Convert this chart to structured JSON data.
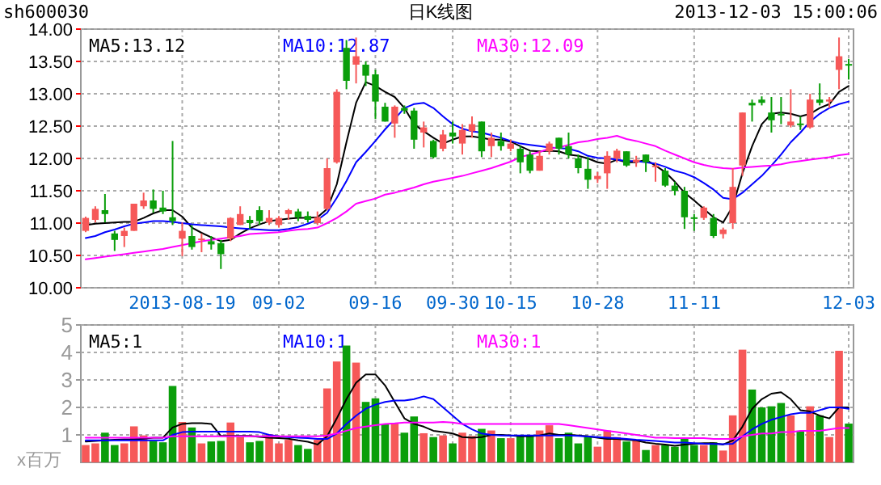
{
  "chart_data": [
    {
      "type": "candlestick",
      "title": "日K线图",
      "subtitle": "sh600030",
      "annotations": [
        "2013-12-03 15:00:06"
      ],
      "categories": [
        null,
        null,
        null,
        null,
        null,
        null,
        null,
        null,
        null,
        null,
        "2013-08-19",
        null,
        null,
        null,
        null,
        null,
        null,
        null,
        null,
        null,
        "09-02",
        null,
        null,
        null,
        null,
        null,
        null,
        null,
        null,
        null,
        "09-16",
        null,
        null,
        null,
        null,
        null,
        null,
        null,
        "09-30",
        null,
        null,
        null,
        null,
        null,
        "10-15",
        null,
        null,
        null,
        null,
        null,
        null,
        null,
        null,
        "10-28",
        null,
        null,
        null,
        null,
        null,
        null,
        null,
        null,
        null,
        "11-11",
        null,
        null,
        null,
        null,
        null,
        null,
        null,
        null,
        null,
        null,
        null,
        null,
        null,
        null,
        null,
        "12-03"
      ],
      "ylim": [
        10,
        14
      ],
      "yticks": [
        {
          "value": 10,
          "label": "10.00"
        },
        {
          "value": 10.5,
          "label": "10.50"
        },
        {
          "value": 11,
          "label": "11.00"
        },
        {
          "value": 11.5,
          "label": "11.50"
        },
        {
          "value": 12,
          "label": "12.00"
        },
        {
          "value": 12.5,
          "label": "12.50"
        },
        {
          "value": 13,
          "label": "13.00"
        },
        {
          "value": 13.5,
          "label": "13.50"
        },
        {
          "value": 14,
          "label": "14.00"
        }
      ],
      "grid": true,
      "legend": "top",
      "series": [
        {
          "ohlc": [
            [
              10.88,
              11.1,
              10.86,
              11.08
            ],
            [
              11.05,
              11.26,
              11.01,
              11.22
            ],
            [
              11.2,
              11.45,
              11.01,
              11.14
            ],
            [
              10.84,
              10.88,
              10.57,
              10.74
            ],
            [
              10.8,
              10.93,
              10.63,
              10.88
            ],
            [
              10.88,
              11.3,
              10.88,
              11.3
            ],
            [
              11.26,
              11.47,
              11.22,
              11.35
            ],
            [
              11.35,
              11.52,
              11.16,
              11.22
            ],
            [
              11.24,
              11.5,
              11.14,
              11.18
            ],
            [
              11.09,
              12.27,
              10.97,
              11.03
            ],
            [
              10.76,
              11.01,
              10.49,
              10.88
            ],
            [
              10.8,
              10.97,
              10.59,
              10.63
            ],
            [
              10.74,
              10.84,
              10.55,
              10.76
            ],
            [
              10.72,
              10.8,
              10.59,
              10.67
            ],
            [
              10.69,
              10.74,
              10.29,
              10.52
            ],
            [
              10.76,
              11.09,
              10.72,
              11.08
            ],
            [
              10.97,
              11.26,
              10.97,
              11.14
            ],
            [
              11.05,
              11.11,
              10.91,
              11.0
            ],
            [
              11.2,
              11.26,
              10.97,
              11.03
            ],
            [
              11.01,
              11.2,
              10.97,
              11.08
            ],
            [
              10.97,
              11.11,
              10.93,
              11.08
            ],
            [
              11.14,
              11.22,
              11.05,
              11.2
            ],
            [
              11.18,
              11.22,
              11.03,
              11.09
            ],
            [
              11.11,
              11.18,
              11.01,
              11.05
            ],
            [
              11.0,
              11.18,
              10.97,
              11.09
            ],
            [
              11.22,
              12.0,
              11.2,
              11.85
            ],
            [
              11.94,
              13.07,
              11.92,
              13.03
            ],
            [
              13.71,
              13.83,
              13.07,
              13.2
            ],
            [
              13.45,
              13.87,
              13.16,
              13.58
            ],
            [
              13.45,
              13.5,
              13.12,
              13.28
            ],
            [
              13.3,
              13.37,
              12.61,
              12.88
            ],
            [
              12.8,
              12.86,
              12.57,
              12.57
            ],
            [
              12.54,
              12.82,
              12.32,
              12.8
            ],
            [
              12.78,
              12.82,
              12.69,
              12.74
            ],
            [
              12.74,
              12.78,
              12.15,
              12.29
            ],
            [
              12.4,
              12.57,
              12.17,
              12.48
            ],
            [
              12.27,
              12.29,
              12.0,
              12.02
            ],
            [
              12.15,
              12.44,
              12.11,
              12.37
            ],
            [
              12.4,
              12.57,
              12.23,
              12.34
            ],
            [
              12.23,
              12.53,
              12.06,
              12.44
            ],
            [
              12.42,
              12.65,
              12.32,
              12.53
            ],
            [
              12.57,
              12.57,
              12.02,
              12.11
            ],
            [
              12.19,
              12.4,
              12.02,
              12.32
            ],
            [
              12.27,
              12.4,
              12.12,
              12.19
            ],
            [
              12.15,
              12.29,
              12.11,
              12.23
            ],
            [
              12.15,
              12.19,
              11.77,
              11.94
            ],
            [
              12.06,
              12.11,
              11.77,
              11.81
            ],
            [
              11.81,
              12.11,
              11.81,
              12.04
            ],
            [
              12.11,
              12.26,
              12.06,
              12.23
            ],
            [
              12.32,
              12.32,
              12.06,
              12.15
            ],
            [
              12.19,
              12.4,
              12.0,
              12.06
            ],
            [
              12.0,
              12.06,
              11.77,
              11.85
            ],
            [
              11.84,
              12.02,
              11.53,
              11.67
            ],
            [
              11.68,
              11.79,
              11.62,
              11.73
            ],
            [
              11.77,
              12.11,
              11.53,
              12.04
            ],
            [
              12.0,
              12.15,
              11.94,
              12.12
            ],
            [
              12.11,
              12.11,
              11.87,
              11.89
            ],
            [
              11.94,
              12.04,
              11.87,
              11.98
            ],
            [
              12.06,
              12.06,
              11.79,
              11.94
            ],
            [
              11.87,
              11.94,
              11.64,
              11.89
            ],
            [
              11.81,
              11.85,
              11.56,
              11.58
            ],
            [
              11.58,
              11.64,
              11.43,
              11.5
            ],
            [
              11.5,
              11.56,
              10.91,
              11.09
            ],
            [
              11.09,
              11.14,
              10.88,
              11.08
            ],
            [
              11.08,
              11.26,
              11.05,
              11.24
            ],
            [
              11.08,
              11.14,
              10.77,
              10.8
            ],
            [
              10.83,
              10.93,
              10.76,
              10.9
            ],
            [
              11.0,
              11.85,
              10.91,
              11.56
            ],
            [
              11.89,
              12.71,
              11.73,
              12.71
            ],
            [
              12.86,
              12.91,
              12.57,
              12.82
            ],
            [
              12.91,
              12.96,
              12.82,
              12.86
            ],
            [
              12.71,
              12.95,
              12.4,
              12.59
            ],
            [
              12.69,
              12.95,
              12.53,
              12.67
            ],
            [
              12.51,
              13.07,
              12.48,
              12.57
            ],
            [
              12.54,
              12.65,
              12.44,
              12.52
            ],
            [
              12.48,
              13.0,
              12.46,
              12.91
            ],
            [
              12.91,
              13.16,
              12.82,
              12.86
            ],
            [
              12.88,
              12.95,
              12.78,
              12.91
            ],
            [
              13.37,
              13.87,
              13.07,
              13.58
            ],
            [
              13.46,
              13.54,
              13.22,
              13.44
            ]
          ],
          "colors": [
            "#f65858",
            "#f65858",
            "#0a9e0a",
            "#0a9e0a",
            "#f65858",
            "#f65858",
            "#f65858",
            "#0a9e0a",
            "#0a9e0a",
            "#0a9e0a",
            "#f65858",
            "#0a9e0a",
            "#f65858",
            "#0a9e0a",
            "#0a9e0a",
            "#f65858",
            "#f65858",
            "#0a9e0a",
            "#0a9e0a",
            "#f65858",
            "#f65858",
            "#f65858",
            "#0a9e0a",
            "#0a9e0a",
            "#f65858",
            "#f65858",
            "#f65858",
            "#0a9e0a",
            "#f65858",
            "#0a9e0a",
            "#0a9e0a",
            "#0a9e0a",
            "#f65858",
            "#0a9e0a",
            "#0a9e0a",
            "#f65858",
            "#0a9e0a",
            "#f65858",
            "#0a9e0a",
            "#f65858",
            "#f65858",
            "#0a9e0a",
            "#f65858",
            "#0a9e0a",
            "#f65858",
            "#0a9e0a",
            "#0a9e0a",
            "#f65858",
            "#f65858",
            "#0a9e0a",
            "#0a9e0a",
            "#0a9e0a",
            "#0a9e0a",
            "#f65858",
            "#f65858",
            "#f65858",
            "#0a9e0a",
            "#f65858",
            "#0a9e0a",
            "#f65858",
            "#0a9e0a",
            "#0a9e0a",
            "#0a9e0a",
            "#0a9e0a",
            "#f65858",
            "#0a9e0a",
            "#f65858",
            "#f65858",
            "#f65858",
            "#0a9e0a",
            "#0a9e0a",
            "#0a9e0a",
            "#0a9e0a",
            "#f65858",
            "#0a9e0a",
            "#f65858",
            "#0a9e0a",
            "#f65858",
            "#f65858",
            "#0a9e0a"
          ]
        },
        {
          "type": "line",
          "name": "MA5:13.12",
          "color": "#000000",
          "values": [
            10.97,
            10.99,
            11.0,
            11.01,
            11.02,
            11.02,
            11.08,
            11.15,
            11.2,
            11.2,
            11.1,
            10.93,
            10.85,
            10.78,
            10.72,
            10.74,
            10.84,
            10.92,
            10.98,
            11.03,
            11.05,
            11.07,
            11.08,
            11.08,
            11.09,
            11.22,
            11.6,
            12.25,
            12.86,
            13.18,
            13.12,
            13.03,
            12.95,
            12.78,
            12.53,
            12.42,
            12.32,
            12.23,
            12.29,
            12.34,
            12.34,
            12.32,
            12.29,
            12.29,
            12.26,
            12.19,
            12.12,
            12.11,
            12.12,
            12.11,
            12.06,
            12.04,
            12.0,
            11.94,
            11.92,
            11.98,
            11.94,
            11.94,
            11.98,
            11.89,
            11.79,
            11.64,
            11.47,
            11.35,
            11.22,
            11.09,
            11.01,
            11.26,
            11.77,
            12.19,
            12.53,
            12.69,
            12.71,
            12.69,
            12.65,
            12.69,
            12.78,
            12.84,
            13.03,
            13.12
          ]
        },
        {
          "type": "line",
          "name": "MA10:12.87",
          "color": "#0000ff",
          "values": [
            10.77,
            10.8,
            10.86,
            10.9,
            10.95,
            10.99,
            11.01,
            11.03,
            11.03,
            11.02,
            11.0,
            10.98,
            10.97,
            10.96,
            10.95,
            10.93,
            10.92,
            10.91,
            10.9,
            10.89,
            10.89,
            10.91,
            10.94,
            10.99,
            11.05,
            11.16,
            11.39,
            11.65,
            11.94,
            12.1,
            12.27,
            12.45,
            12.61,
            12.78,
            12.84,
            12.86,
            12.78,
            12.65,
            12.53,
            12.46,
            12.42,
            12.4,
            12.36,
            12.32,
            12.27,
            12.23,
            12.21,
            12.19,
            12.17,
            12.16,
            12.15,
            12.11,
            12.04,
            12.01,
            12.0,
            11.98,
            11.96,
            11.96,
            11.94,
            11.92,
            11.87,
            11.81,
            11.77,
            11.71,
            11.62,
            11.52,
            11.39,
            11.37,
            11.47,
            11.6,
            11.73,
            11.89,
            12.06,
            12.25,
            12.4,
            12.57,
            12.69,
            12.78,
            12.84,
            12.88
          ]
        },
        {
          "type": "line",
          "name": "MA30:12.09",
          "color": "#ff00ff",
          "values": [
            10.44,
            10.46,
            10.48,
            10.5,
            10.52,
            10.54,
            10.56,
            10.58,
            10.6,
            10.63,
            10.66,
            10.69,
            10.72,
            10.74,
            10.76,
            10.78,
            10.8,
            10.83,
            10.84,
            10.85,
            10.86,
            10.88,
            10.9,
            10.91,
            10.93,
            11.0,
            11.08,
            11.18,
            11.3,
            11.34,
            11.38,
            11.44,
            11.47,
            11.51,
            11.55,
            11.6,
            11.64,
            11.67,
            11.7,
            11.73,
            11.77,
            11.81,
            11.85,
            11.9,
            11.95,
            12.02,
            12.06,
            12.1,
            12.15,
            12.17,
            12.21,
            12.25,
            12.27,
            12.3,
            12.32,
            12.35,
            12.3,
            12.27,
            12.23,
            12.19,
            12.12,
            12.06,
            12.0,
            11.94,
            11.9,
            11.87,
            11.85,
            11.84,
            11.86,
            11.87,
            11.88,
            11.89,
            11.91,
            11.94,
            11.96,
            11.98,
            12.0,
            12.02,
            12.05,
            12.07
          ]
        }
      ]
    },
    {
      "type": "bar",
      "ylabel": "x百万",
      "categories": [
        null,
        null,
        null,
        null,
        null,
        null,
        null,
        null,
        null,
        null,
        null,
        null,
        null,
        null,
        null,
        null,
        null,
        null,
        null,
        null,
        null,
        null,
        null,
        null,
        null,
        null,
        null,
        null,
        null,
        null,
        null,
        null,
        null,
        null,
        null,
        null,
        null,
        null,
        null,
        null,
        null,
        null,
        null,
        null,
        null,
        null,
        null,
        null,
        null,
        null,
        null,
        null,
        null,
        null,
        null,
        null,
        null,
        null,
        null,
        null,
        null,
        null,
        null,
        null,
        null,
        null,
        null,
        null,
        null,
        null,
        null,
        null,
        null,
        null,
        null,
        null,
        null,
        null,
        null,
        null
      ],
      "ylim": [
        0,
        5
      ],
      "yticks": [
        1,
        2,
        3,
        4,
        5
      ],
      "grid": true,
      "legend": "top",
      "tick_labels": "y",
      "series": [
        {
          "values": [
            0.63,
            0.69,
            1.08,
            0.63,
            0.69,
            1.31,
            0.98,
            0.78,
            0.73,
            2.78,
            1.47,
            1.27,
            0.69,
            0.76,
            0.78,
            1.45,
            0.92,
            0.73,
            0.78,
            1.02,
            0.69,
            0.82,
            0.63,
            0.49,
            0.82,
            2.69,
            3.67,
            4.25,
            3.63,
            2.2,
            2.33,
            1.41,
            1.41,
            1.08,
            1.67,
            1.06,
            0.92,
            0.98,
            0.69,
            1.08,
            0.96,
            1.22,
            1.16,
            0.88,
            0.88,
            0.96,
            0.96,
            1.16,
            1.35,
            0.88,
            1.08,
            0.69,
            0.96,
            0.57,
            1.16,
            0.92,
            0.76,
            0.82,
            0.45,
            0.63,
            0.63,
            0.57,
            0.88,
            0.63,
            0.63,
            0.73,
            0.43,
            1.71,
            4.1,
            2.65,
            2.0,
            2.04,
            2.16,
            1.71,
            1.12,
            2.04,
            1.71,
            0.92,
            4.06,
            1.41
          ],
          "colors": [
            "#f65858",
            "#f65858",
            "#0a9e0a",
            "#0a9e0a",
            "#f65858",
            "#f65858",
            "#f65858",
            "#0a9e0a",
            "#0a9e0a",
            "#0a9e0a",
            "#f65858",
            "#0a9e0a",
            "#f65858",
            "#0a9e0a",
            "#0a9e0a",
            "#f65858",
            "#f65858",
            "#0a9e0a",
            "#0a9e0a",
            "#f65858",
            "#f65858",
            "#f65858",
            "#0a9e0a",
            "#0a9e0a",
            "#f65858",
            "#f65858",
            "#f65858",
            "#0a9e0a",
            "#f65858",
            "#0a9e0a",
            "#0a9e0a",
            "#0a9e0a",
            "#f65858",
            "#0a9e0a",
            "#0a9e0a",
            "#f65858",
            "#0a9e0a",
            "#f65858",
            "#0a9e0a",
            "#f65858",
            "#f65858",
            "#0a9e0a",
            "#f65858",
            "#0a9e0a",
            "#f65858",
            "#0a9e0a",
            "#0a9e0a",
            "#f65858",
            "#f65858",
            "#0a9e0a",
            "#0a9e0a",
            "#0a9e0a",
            "#0a9e0a",
            "#f65858",
            "#f65858",
            "#f65858",
            "#0a9e0a",
            "#f65858",
            "#0a9e0a",
            "#f65858",
            "#0a9e0a",
            "#0a9e0a",
            "#0a9e0a",
            "#0a9e0a",
            "#f65858",
            "#0a9e0a",
            "#f65858",
            "#f65858",
            "#f65858",
            "#0a9e0a",
            "#0a9e0a",
            "#0a9e0a",
            "#0a9e0a",
            "#f65858",
            "#0a9e0a",
            "#f65858",
            "#0a9e0a",
            "#f65858",
            "#f65858",
            "#0a9e0a"
          ]
        },
        {
          "type": "line",
          "name": "MA5:1",
          "color": "#000000",
          "values": [
            0.76,
            0.78,
            0.8,
            0.82,
            0.84,
            0.84,
            0.86,
            0.9,
            0.9,
            1.27,
            1.4,
            1.43,
            1.43,
            1.4,
            0.96,
            0.96,
            0.96,
            0.96,
            0.93,
            0.9,
            0.88,
            0.86,
            0.8,
            0.75,
            0.65,
            0.95,
            1.6,
            2.3,
            2.9,
            3.2,
            3.2,
            2.8,
            2.2,
            1.6,
            1.4,
            1.3,
            1.15,
            1.1,
            1.05,
            0.92,
            0.9,
            0.92,
            1.0,
            1.0,
            0.98,
            0.95,
            0.95,
            0.98,
            1.05,
            1.0,
            1.0,
            0.98,
            0.95,
            0.9,
            0.85,
            0.85,
            0.82,
            0.8,
            0.72,
            0.68,
            0.65,
            0.6,
            0.65,
            0.68,
            0.7,
            0.7,
            0.65,
            0.8,
            1.3,
            1.95,
            2.3,
            2.5,
            2.55,
            2.3,
            1.9,
            1.85,
            1.7,
            1.6,
            2.0,
            2.0
          ]
        },
        {
          "type": "line",
          "name": "MA10:1",
          "color": "#0000ff",
          "values": [
            0.8,
            0.8,
            0.8,
            0.8,
            0.8,
            0.8,
            0.8,
            0.8,
            0.8,
            1.0,
            1.1,
            1.12,
            1.12,
            1.12,
            1.12,
            1.12,
            1.12,
            1.12,
            1.1,
            1.0,
            0.95,
            0.92,
            0.9,
            0.88,
            0.85,
            0.85,
            1.05,
            1.4,
            1.7,
            1.95,
            2.1,
            2.2,
            2.25,
            2.25,
            2.3,
            2.4,
            2.3,
            2.0,
            1.7,
            1.4,
            1.2,
            1.05,
            1.0,
            0.98,
            0.98,
            0.98,
            0.98,
            0.98,
            0.98,
            0.98,
            0.98,
            0.96,
            0.94,
            0.92,
            0.9,
            0.88,
            0.85,
            0.82,
            0.8,
            0.78,
            0.75,
            0.72,
            0.72,
            0.7,
            0.68,
            0.67,
            0.66,
            0.68,
            0.95,
            1.2,
            1.4,
            1.55,
            1.65,
            1.75,
            1.8,
            1.8,
            1.9,
            2.0,
            2.0,
            1.95
          ]
        },
        {
          "type": "line",
          "name": "MA30:1",
          "color": "#ff00ff",
          "values": [
            0.9,
            0.9,
            0.9,
            0.9,
            0.9,
            0.9,
            0.9,
            0.9,
            0.9,
            0.95,
            0.95,
            0.95,
            0.95,
            0.95,
            0.95,
            0.95,
            0.95,
            0.95,
            0.95,
            0.95,
            0.95,
            0.95,
            0.95,
            0.95,
            0.95,
            0.98,
            1.05,
            1.15,
            1.25,
            1.3,
            1.35,
            1.4,
            1.42,
            1.45,
            1.45,
            1.45,
            1.45,
            1.47,
            1.45,
            1.4,
            1.4,
            1.4,
            1.4,
            1.4,
            1.4,
            1.4,
            1.4,
            1.4,
            1.4,
            1.4,
            1.35,
            1.3,
            1.25,
            1.2,
            1.15,
            1.1,
            1.05,
            1.0,
            0.95,
            0.9,
            0.9,
            0.88,
            0.88,
            0.88,
            0.88,
            0.85,
            0.85,
            0.85,
            0.95,
            1.0,
            1.05,
            1.05,
            1.1,
            1.1,
            1.15,
            1.15,
            1.15,
            1.2,
            1.25,
            1.25
          ]
        }
      ]
    }
  ]
}
